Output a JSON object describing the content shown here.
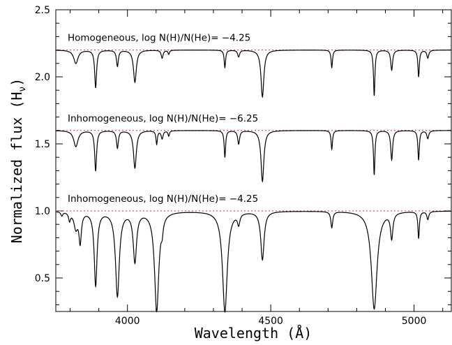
{
  "chart_data": {
    "type": "line",
    "title": "",
    "xlabel": "Wavelength (Å)",
    "ylabel": "Normalized flux (H",
    "ylabel_sub": "ν",
    "ylabel_close": ")",
    "xlim": [
      3750,
      5130
    ],
    "ylim": [
      0.25,
      2.5
    ],
    "x_ticks": [
      4000,
      4500,
      5000
    ],
    "x_tick_labels": [
      "4000",
      "4500",
      "5000"
    ],
    "y_ticks": [
      0.5,
      1.0,
      1.5,
      2.0,
      2.5
    ],
    "y_tick_labels": [
      "0.5",
      "1.0",
      "1.5",
      "2.0",
      "2.5"
    ],
    "reference_line_color": "#d03030",
    "line_color": "#000000",
    "series": [
      {
        "name": "Homogeneous, log N(H)/N(He)= −4.25",
        "continuum": 2.2,
        "lines": [
          {
            "x": 3820,
            "depth": 0.1,
            "width": 9
          },
          {
            "x": 3889,
            "depth": 0.28,
            "width": 4
          },
          {
            "x": 3965,
            "depth": 0.12,
            "width": 4
          },
          {
            "x": 4026,
            "depth": 0.24,
            "width": 6
          },
          {
            "x": 4121,
            "depth": 0.06,
            "width": 4
          },
          {
            "x": 4144,
            "depth": 0.03,
            "width": 3
          },
          {
            "x": 4340,
            "depth": 0.13,
            "width": 3
          },
          {
            "x": 4388,
            "depth": 0.05,
            "width": 4
          },
          {
            "x": 4471,
            "depth": 0.35,
            "width": 6
          },
          {
            "x": 4713,
            "depth": 0.13,
            "width": 3
          },
          {
            "x": 4861,
            "depth": 0.34,
            "width": 3
          },
          {
            "x": 4922,
            "depth": 0.15,
            "width": 4
          },
          {
            "x": 5016,
            "depth": 0.2,
            "width": 3
          },
          {
            "x": 5048,
            "depth": 0.06,
            "width": 4
          }
        ]
      },
      {
        "name": "Inhomogeneous, log N(H)/N(He)= −6.25",
        "continuum": 1.6,
        "lines": [
          {
            "x": 3820,
            "depth": 0.12,
            "width": 9
          },
          {
            "x": 3889,
            "depth": 0.3,
            "width": 4
          },
          {
            "x": 3965,
            "depth": 0.13,
            "width": 4
          },
          {
            "x": 4026,
            "depth": 0.28,
            "width": 6
          },
          {
            "x": 4102,
            "depth": 0.1,
            "width": 3
          },
          {
            "x": 4121,
            "depth": 0.06,
            "width": 4
          },
          {
            "x": 4144,
            "depth": 0.04,
            "width": 3
          },
          {
            "x": 4340,
            "depth": 0.2,
            "width": 3
          },
          {
            "x": 4388,
            "depth": 0.1,
            "width": 4
          },
          {
            "x": 4471,
            "depth": 0.38,
            "width": 6
          },
          {
            "x": 4713,
            "depth": 0.14,
            "width": 3
          },
          {
            "x": 4861,
            "depth": 0.33,
            "width": 3
          },
          {
            "x": 4922,
            "depth": 0.22,
            "width": 4
          },
          {
            "x": 5016,
            "depth": 0.22,
            "width": 3
          },
          {
            "x": 5048,
            "depth": 0.06,
            "width": 4
          }
        ]
      },
      {
        "name": "Inhomogeneous, log N(H)/N(He)= −4.25",
        "continuum": 1.0,
        "lines": [
          {
            "x": 3771,
            "depth": 0.03,
            "width": 4
          },
          {
            "x": 3798,
            "depth": 0.06,
            "width": 4
          },
          {
            "x": 3820,
            "depth": 0.12,
            "width": 8
          },
          {
            "x": 3835,
            "depth": 0.22,
            "width": 5
          },
          {
            "x": 3889,
            "depth": 0.55,
            "width": 6
          },
          {
            "x": 3965,
            "depth": 0.63,
            "width": 8
          },
          {
            "x": 4026,
            "depth": 0.37,
            "width": 7
          },
          {
            "x": 4102,
            "depth": 0.74,
            "width": 9
          },
          {
            "x": 4121,
            "depth": 0.08,
            "width": 4
          },
          {
            "x": 4340,
            "depth": 0.75,
            "width": 10
          },
          {
            "x": 4388,
            "depth": 0.08,
            "width": 5
          },
          {
            "x": 4471,
            "depth": 0.36,
            "width": 7
          },
          {
            "x": 4713,
            "depth": 0.12,
            "width": 4
          },
          {
            "x": 4861,
            "depth": 0.73,
            "width": 12
          },
          {
            "x": 4922,
            "depth": 0.19,
            "width": 5
          },
          {
            "x": 5016,
            "depth": 0.2,
            "width": 3
          },
          {
            "x": 5048,
            "depth": 0.06,
            "width": 4
          }
        ]
      }
    ]
  }
}
